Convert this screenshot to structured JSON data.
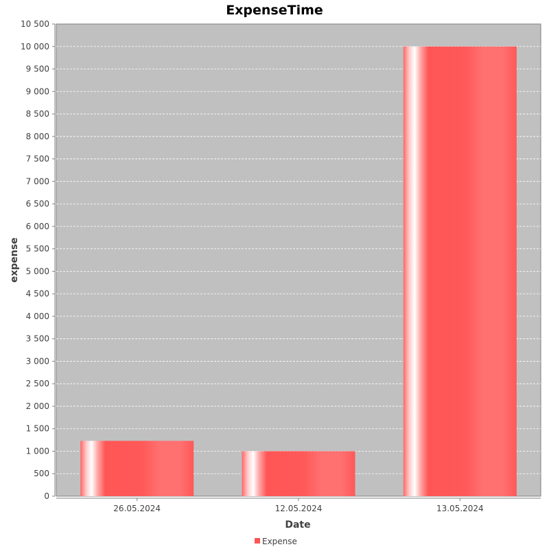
{
  "chart_data": {
    "type": "bar",
    "title": "ExpenseTime",
    "xlabel": "Date",
    "ylabel": "expense",
    "categories": [
      "26.05.2024",
      "12.05.2024",
      "13.05.2024"
    ],
    "series": [
      {
        "name": "Expense",
        "values": [
          1230,
          1000,
          10000
        ]
      }
    ],
    "ylim": [
      0,
      10500
    ],
    "yticks": [
      0,
      500,
      1000,
      1500,
      2000,
      2500,
      3000,
      3500,
      4000,
      4500,
      5000,
      5500,
      6000,
      6500,
      7000,
      7500,
      8000,
      8500,
      9000,
      9500,
      10000,
      10500
    ],
    "ytick_labels": [
      "0",
      "500",
      "1 000",
      "1 500",
      "2 000",
      "2 500",
      "3 000",
      "3 500",
      "4 000",
      "4 500",
      "5 000",
      "5 500",
      "6 000",
      "6 500",
      "7 000",
      "7 500",
      "8 000",
      "8 500",
      "9 000",
      "9 500",
      "10 000",
      "10 500"
    ],
    "grid": true,
    "legend_position": "bottom",
    "colors": {
      "plot_background": "#c0c0c0",
      "bar": "#ff5555",
      "gridline": "#ffffff"
    }
  }
}
